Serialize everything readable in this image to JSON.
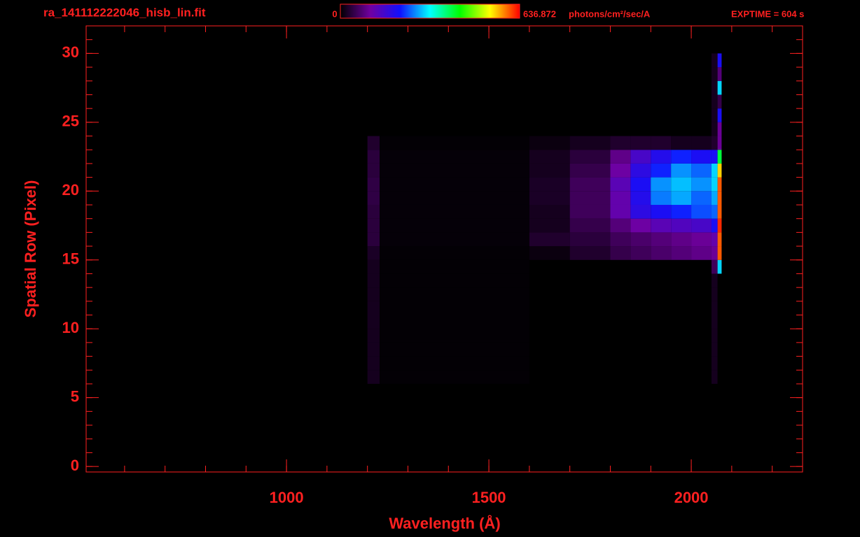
{
  "chart_data": {
    "type": "heatmap",
    "title": "ra_141112222046_hisb_lin.fit",
    "exposure": "EXPTIME = 604 s",
    "x_label": "Wavelength (Å)",
    "y_label": "Spatial Row (Pixel)",
    "xlim": [
      505,
      2275
    ],
    "ylim": [
      -0.4,
      32
    ],
    "xticks": [
      1000,
      1500,
      2000
    ],
    "yticks": [
      0,
      5,
      10,
      15,
      20,
      25,
      30
    ],
    "x_minor": 100,
    "y_minor": 1,
    "axis_color": "#ff2020",
    "colorbar": {
      "min": 0,
      "max": {
        "value": 636.872,
        "label": "636.872"
      },
      "unit": "photons/cm²/sec/A"
    },
    "colormap": [
      "#000000",
      "#7000a0",
      "#1010ff",
      "#00ffff",
      "#00ff00",
      "#ffff00",
      "#ff0000"
    ],
    "x_edges": [
      1200,
      1230,
      1600,
      1700,
      1800,
      1850,
      1900,
      1950,
      2000,
      2050,
      2065,
      2075
    ],
    "y_edges": [
      6,
      7,
      8,
      9,
      10,
      11,
      12,
      13,
      14,
      15,
      16,
      17,
      18,
      19,
      20,
      21,
      22,
      23,
      24,
      25,
      26,
      27,
      28,
      29,
      30
    ],
    "values": [
      [
        20,
        3,
        0,
        0,
        0,
        0,
        0,
        0,
        0,
        20,
        0
      ],
      [
        20,
        3,
        0,
        0,
        0,
        0,
        0,
        0,
        0,
        20,
        0
      ],
      [
        20,
        3,
        0,
        0,
        0,
        0,
        0,
        0,
        0,
        20,
        0
      ],
      [
        20,
        3,
        0,
        0,
        0,
        0,
        0,
        0,
        0,
        20,
        0
      ],
      [
        20,
        3,
        0,
        0,
        0,
        0,
        0,
        0,
        0,
        20,
        0
      ],
      [
        20,
        3,
        0,
        0,
        0,
        0,
        0,
        0,
        0,
        20,
        0
      ],
      [
        20,
        3,
        0,
        0,
        0,
        0,
        0,
        0,
        0,
        20,
        0
      ],
      [
        20,
        3,
        0,
        0,
        0,
        0,
        0,
        0,
        0,
        20,
        0
      ],
      [
        20,
        3,
        0,
        0,
        0,
        0,
        0,
        0,
        0,
        60,
        300
      ],
      [
        25,
        3,
        10,
        30,
        50,
        60,
        70,
        80,
        90,
        100,
        600
      ],
      [
        40,
        5,
        30,
        40,
        60,
        70,
        80,
        90,
        100,
        120,
        600
      ],
      [
        40,
        5,
        20,
        50,
        80,
        110,
        130,
        140,
        150,
        200,
        620
      ],
      [
        40,
        5,
        20,
        60,
        120,
        180,
        200,
        220,
        240,
        250,
        600
      ],
      [
        45,
        5,
        25,
        60,
        120,
        190,
        260,
        280,
        250,
        280,
        600
      ],
      [
        45,
        5,
        25,
        60,
        130,
        200,
        270,
        290,
        270,
        300,
        600
      ],
      [
        40,
        5,
        20,
        50,
        110,
        180,
        220,
        270,
        250,
        300,
        550
      ],
      [
        40,
        5,
        20,
        40,
        90,
        150,
        190,
        220,
        200,
        200,
        400
      ],
      [
        30,
        3,
        10,
        20,
        30,
        30,
        30,
        20,
        20,
        30,
        100
      ],
      [
        0,
        0,
        0,
        0,
        0,
        0,
        0,
        0,
        0,
        20,
        100
      ],
      [
        0,
        0,
        0,
        0,
        0,
        0,
        0,
        0,
        0,
        20,
        200
      ],
      [
        0,
        0,
        0,
        0,
        0,
        0,
        0,
        0,
        0,
        20,
        50
      ],
      [
        0,
        0,
        0,
        0,
        0,
        0,
        0,
        0,
        0,
        20,
        300
      ],
      [
        0,
        0,
        0,
        0,
        0,
        0,
        0,
        0,
        0,
        20,
        80
      ],
      [
        0,
        0,
        0,
        0,
        0,
        0,
        0,
        0,
        0,
        20,
        200
      ]
    ]
  }
}
